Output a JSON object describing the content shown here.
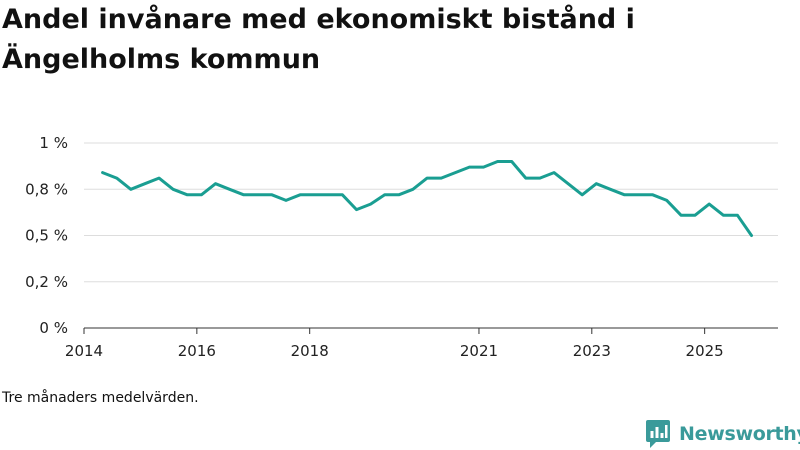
{
  "page": {
    "title": "Andel invånare med ekonomiskt bistånd i Ängelholms kommun",
    "caption": "Tre månaders medelvärden.",
    "brand": "Newsworthy",
    "brand_icon": "newsworthy-logo-icon"
  },
  "colors": {
    "line": "#1a9e92",
    "grid": "#dddddd",
    "axis": "#333333",
    "brand": "#3a9a9a"
  },
  "chart_data": {
    "type": "line",
    "title": "Andel invånare med ekonomiskt bistånd i Ängelholms kommun",
    "xlabel": "",
    "ylabel": "",
    "xlim": [
      2014.0,
      2026.3
    ],
    "ylim": [
      0,
      1.0
    ],
    "x_ticks": [
      2014,
      2016,
      2018,
      2021,
      2023,
      2025
    ],
    "x_tick_labels": [
      "2014",
      "2016",
      "2018",
      "2021",
      "2023",
      "2025"
    ],
    "y_ticks": [
      0,
      0.25,
      0.5,
      0.75,
      1.0
    ],
    "y_tick_labels": [
      "0 %",
      "0,2 %",
      "0,5 %",
      "0,8 %",
      "1 %"
    ],
    "grid": true,
    "series": [
      {
        "name": "Andel invånare med ekonomiskt bistånd",
        "x": [
          2014.33,
          2014.58,
          2014.83,
          2015.08,
          2015.33,
          2015.58,
          2015.83,
          2016.08,
          2016.33,
          2016.58,
          2016.83,
          2017.08,
          2017.33,
          2017.58,
          2017.83,
          2018.08,
          2018.33,
          2018.58,
          2018.83,
          2019.08,
          2019.33,
          2019.58,
          2019.83,
          2020.08,
          2020.33,
          2020.58,
          2020.83,
          2021.08,
          2021.33,
          2021.58,
          2021.83,
          2022.08,
          2022.33,
          2022.58,
          2022.83,
          2023.08,
          2023.33,
          2023.58,
          2023.83,
          2024.08,
          2024.33,
          2024.58,
          2024.83,
          2025.08,
          2025.33,
          2025.58,
          2025.83
        ],
        "values": [
          0.84,
          0.81,
          0.75,
          0.78,
          0.81,
          0.75,
          0.72,
          0.72,
          0.78,
          0.75,
          0.72,
          0.72,
          0.72,
          0.69,
          0.72,
          0.72,
          0.72,
          0.72,
          0.64,
          0.67,
          0.72,
          0.72,
          0.75,
          0.81,
          0.81,
          0.84,
          0.87,
          0.87,
          0.9,
          0.9,
          0.81,
          0.81,
          0.84,
          0.78,
          0.72,
          0.78,
          0.75,
          0.72,
          0.72,
          0.72,
          0.69,
          0.61,
          0.61,
          0.67,
          0.61,
          0.61,
          0.5
        ]
      }
    ]
  }
}
